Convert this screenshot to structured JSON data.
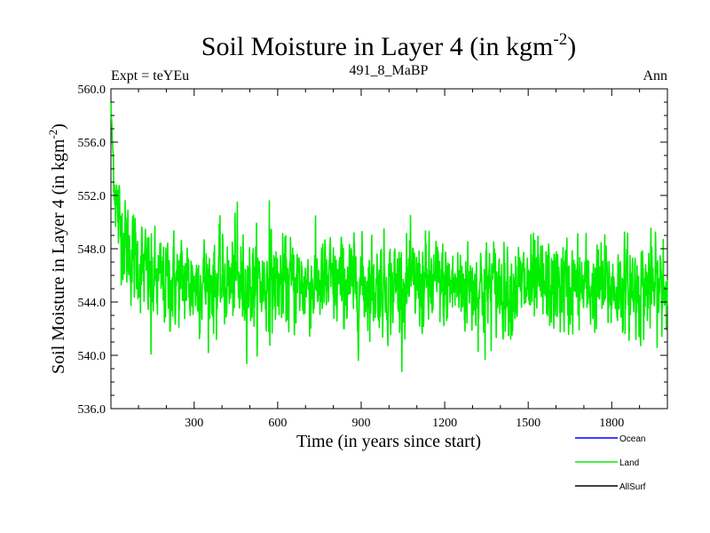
{
  "chart_data": {
    "type": "line",
    "title": "Soil Moisture in Layer 4 (in kgm",
    "title_sup": "-2",
    "title_close": ")",
    "subtitle_left": "Expt = teYEu",
    "subtitle_center": "491_8_MaBP",
    "subtitle_right": "Ann",
    "xlabel": "Time (in years since start)",
    "ylabel": "Soil Moisture in Layer 4 (in kgm",
    "ylabel_sup": "-2",
    "ylabel_close": ")",
    "xlim": [
      1,
      2000
    ],
    "ylim": [
      536.0,
      560.0
    ],
    "xticks": [
      300,
      600,
      900,
      1200,
      1500,
      1800
    ],
    "xtick_labels": [
      "300",
      "600",
      "900",
      "1200",
      "1500",
      "1800"
    ],
    "yticks": [
      536.0,
      540.0,
      544.0,
      548.0,
      552.0,
      556.0,
      560.0
    ],
    "ytick_labels": [
      "536.0",
      "540.0",
      "544.0",
      "548.0",
      "552.0",
      "556.0",
      "560.0"
    ],
    "series": [
      {
        "name": "Land",
        "color": "#00ee00",
        "description": "annual values; starts near 559 at year 1, drops to ~550 by year 30, then fluctuates around ~545 (range ~540–551.5)",
        "start_value": 559.0,
        "equilibrium_mean": 545.0,
        "noise_amplitude": 1.6,
        "keypoints": [
          {
            "x": 1,
            "y": 559.0
          },
          {
            "x": 5,
            "y": 556.5
          },
          {
            "x": 12,
            "y": 553.5
          },
          {
            "x": 25,
            "y": 550.5
          },
          {
            "x": 60,
            "y": 548.0
          },
          {
            "x": 150,
            "y": 545.5
          },
          {
            "x": 2000,
            "y": 545.0
          }
        ],
        "extremes": [
          {
            "x": 145,
            "y": 540.1
          },
          {
            "x": 455,
            "y": 551.5
          },
          {
            "x": 570,
            "y": 551.6
          },
          {
            "x": 1345,
            "y": 539.7
          },
          {
            "x": 1985,
            "y": 548.7
          }
        ]
      }
    ],
    "legend": {
      "placement": "bottom-right",
      "entries": [
        {
          "label": "Ocean",
          "color": "#0000ff"
        },
        {
          "label": "Land",
          "color": "#00ee00"
        },
        {
          "label": "AllSurf",
          "color": "#000000"
        }
      ]
    }
  }
}
